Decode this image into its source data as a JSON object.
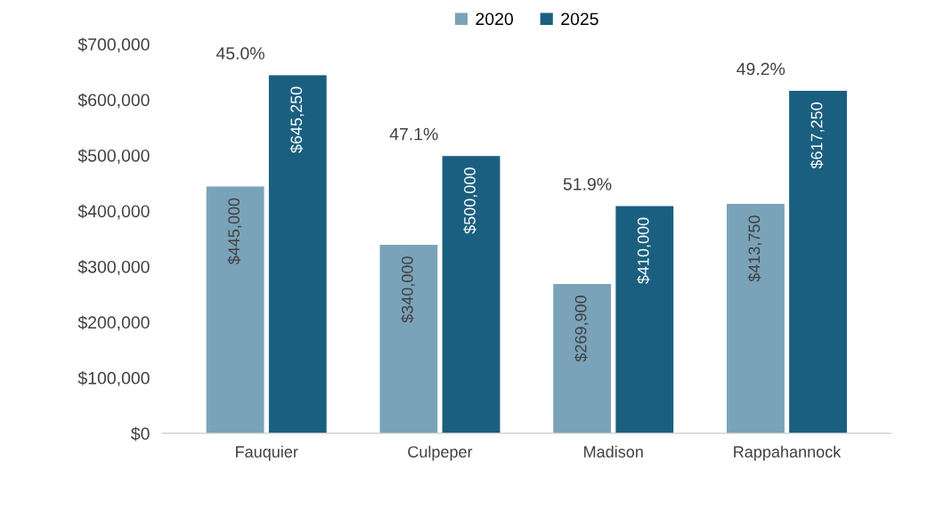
{
  "chart_data": {
    "type": "bar",
    "categories": [
      "Fauquier",
      "Culpeper",
      "Madison",
      "Rappahannock"
    ],
    "series": [
      {
        "name": "2020",
        "color": "#7aa3b9",
        "values": [
          445000,
          340000,
          269900,
          413750
        ],
        "value_labels": [
          "$445,000",
          "$340,000",
          "$269,900",
          "$413,750"
        ]
      },
      {
        "name": "2025",
        "color": "#1a5f80",
        "values": [
          645250,
          500000,
          410000,
          617250
        ],
        "value_labels": [
          "$645,250",
          "$500,000",
          "$410,000",
          "$617,250"
        ]
      }
    ],
    "ylim": [
      0,
      700000
    ],
    "yticks": [
      {
        "value": 0,
        "label": "$0"
      },
      {
        "value": 100000,
        "label": "$100,000"
      },
      {
        "value": 200000,
        "label": "$200,000"
      },
      {
        "value": 300000,
        "label": "$300,000"
      },
      {
        "value": 400000,
        "label": "$400,000"
      },
      {
        "value": 500000,
        "label": "$500,000"
      },
      {
        "value": 600000,
        "label": "$600,000"
      },
      {
        "value": 700000,
        "label": "$700,000"
      }
    ],
    "annotations": [
      "45.0%",
      "47.1%",
      "51.9%",
      "49.2%"
    ],
    "legend": "top",
    "grid": false
  }
}
